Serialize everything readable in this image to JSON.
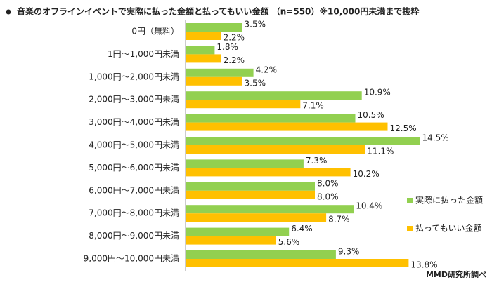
{
  "chart_data": {
    "type": "bar",
    "orientation": "horizontal",
    "title": "音楽のオフラインイベントで実際に払った金額と払ってもいい金額 （n=550）※10,000円未満まで抜粋",
    "source": "MMD研究所調べ",
    "categories": [
      "0円（無料）",
      "1円～1,000円未満",
      "1,000円～2,000円未満",
      "2,000円～3,000円未満",
      "3,000円～4,000円未満",
      "4,000円～5,000円未満",
      "5,000円～6,000円未満",
      "6,000円～7,000円未満",
      "7,000円～8,000円未満",
      "8,000円～9,000円未満",
      "9,000円～10,000円未満"
    ],
    "series": [
      {
        "name": "実際に払った金額",
        "color": "#92d050",
        "values": [
          3.5,
          1.8,
          4.2,
          10.9,
          10.5,
          14.5,
          7.3,
          8.0,
          10.4,
          6.4,
          9.3
        ],
        "value_labels": [
          "3.5%",
          "1.8%",
          "4.2%",
          "10.9%",
          "10.5%",
          "14.5%",
          "7.3%",
          "8.0%",
          "10.4%",
          "6.4%",
          "9.3%"
        ]
      },
      {
        "name": "払ってもいい金額",
        "color": "#ffc000",
        "values": [
          2.2,
          2.2,
          3.5,
          7.1,
          12.5,
          11.1,
          10.2,
          8.0,
          8.7,
          5.6,
          13.8
        ],
        "value_labels": [
          "2.2%",
          "2.2%",
          "3.5%",
          "7.1%",
          "12.5%",
          "11.1%",
          "10.2%",
          "8.0%",
          "8.7%",
          "5.6%",
          "13.8%"
        ]
      }
    ],
    "xlim": [
      0,
      15
    ]
  }
}
